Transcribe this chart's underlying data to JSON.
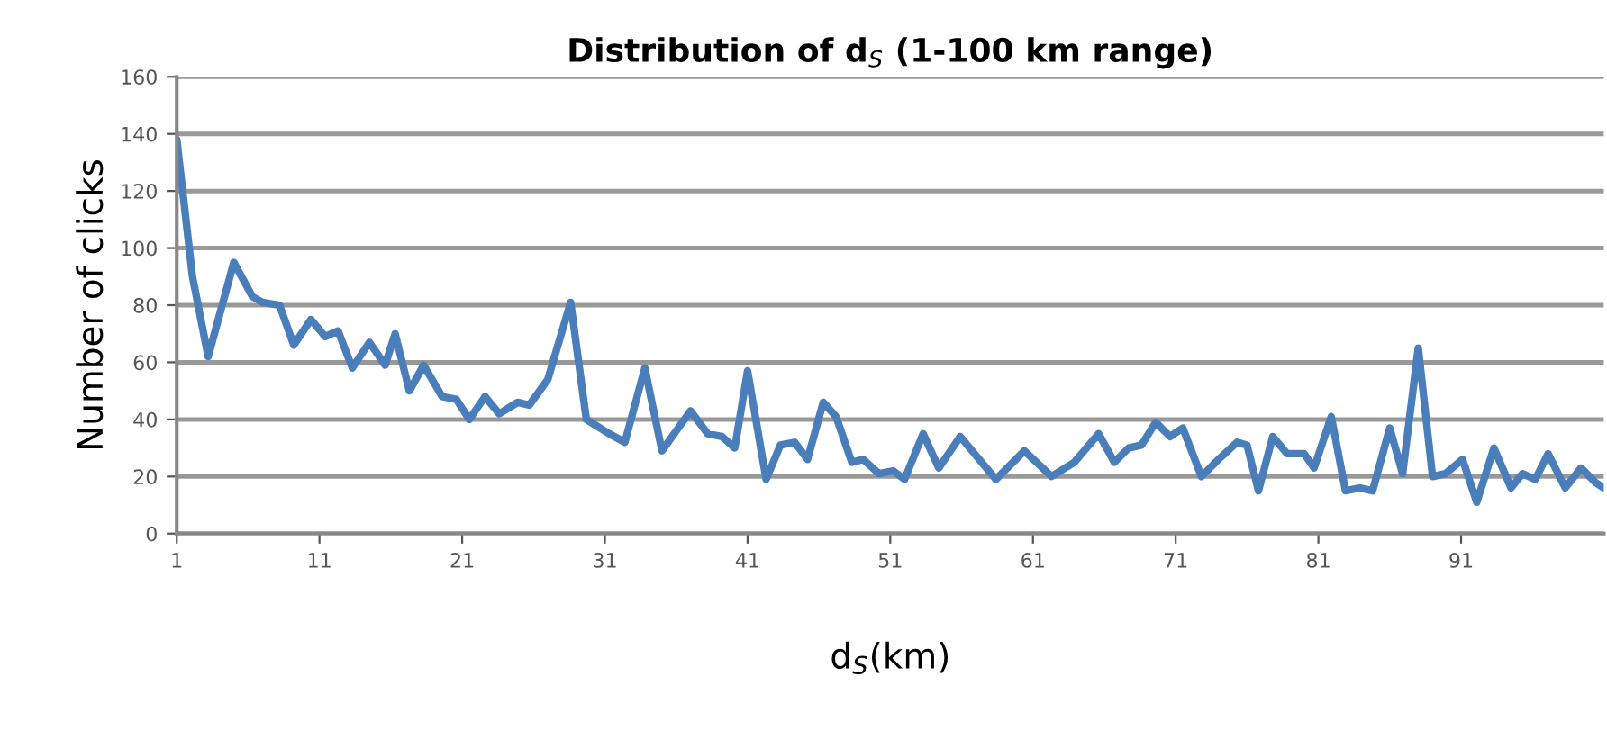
{
  "chart_data": {
    "type": "line",
    "title": "Distribution of d$_{S}$ (1-100 km range)",
    "xlabel": "d$_{S}$(km)",
    "ylabel": "Number of clicks",
    "x": [
      1,
      2.1,
      3.2,
      5.0,
      6.3,
      7,
      8.2,
      9.2,
      10.4,
      11.4,
      12.3,
      13.3,
      14.5,
      15.6,
      16.3,
      17.3,
      18.3,
      19.6,
      20.6,
      21.5,
      22.6,
      23.6,
      24.9,
      25.7,
      27,
      28.6,
      29.7,
      31.3,
      32.4,
      33.8,
      35,
      37,
      38.2,
      39.2,
      40.1,
      41,
      42.3,
      43.3,
      44.3,
      45.2,
      46.3,
      47.2,
      48.3,
      49.1,
      50.2,
      51.2,
      52,
      53.3,
      54.4,
      55.9,
      56.9,
      58.4,
      60.4,
      62.3,
      63.9,
      65.6,
      66.7,
      67.7,
      68.6,
      69.6,
      70.6,
      71.5,
      72.8,
      74,
      75.3,
      76,
      76.8,
      77.8,
      78.8,
      80,
      80.7,
      81.9,
      82.9,
      83.9,
      84.8,
      86,
      86.9,
      88,
      89,
      89.9,
      91.1,
      92.1,
      93.3,
      94.5,
      95.3,
      96.2,
      97.1,
      98.3,
      99.4,
      100.4,
      101
    ],
    "series": [
      {
        "color": "#4a7ebb",
        "values": [
          138,
          90,
          62,
          95,
          83,
          81,
          80,
          66,
          75,
          69,
          71,
          58,
          67,
          59,
          70,
          50,
          59,
          48,
          47,
          40,
          48,
          42,
          46,
          45,
          54,
          81,
          40,
          35,
          32,
          58,
          29,
          43,
          35,
          34,
          30,
          57,
          19,
          31,
          32,
          26,
          46,
          41,
          25,
          26,
          21,
          22,
          19,
          35,
          23,
          34,
          28,
          19,
          29,
          20,
          25,
          35,
          25,
          30,
          31,
          39,
          34,
          37,
          20,
          26,
          32,
          31,
          15,
          34,
          28,
          28,
          23,
          41,
          15,
          16,
          15,
          37,
          21,
          65,
          20,
          21,
          26,
          11,
          30,
          16,
          21,
          19,
          28,
          16,
          23,
          18,
          16
        ]
      }
    ],
    "xlim": [
      1,
      101
    ],
    "xticks": [
      1,
      11,
      21,
      31,
      41,
      51,
      61,
      71,
      81,
      91
    ],
    "ylim": [
      0,
      160
    ],
    "yticks": [
      0,
      20,
      40,
      60,
      80,
      100,
      120,
      140,
      160
    ],
    "grid": "y",
    "legend": false
  }
}
